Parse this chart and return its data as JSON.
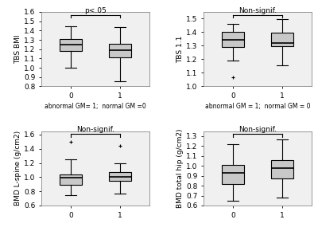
{
  "plots": [
    {
      "ylabel": "TBS BMI",
      "sig_text": "p<.05",
      "ylim": [
        0.8,
        1.6
      ],
      "yticks": [
        0.8,
        0.9,
        1.0,
        1.1,
        1.2,
        1.3,
        1.4,
        1.5,
        1.6
      ],
      "xlabel": "abnormal GM= 1;  normal GM =0",
      "group0": {
        "whislo": 1.0,
        "q1": 1.18,
        "med": 1.25,
        "q3": 1.305,
        "whishi": 1.45,
        "fliers": []
      },
      "group1": {
        "whislo": 0.855,
        "q1": 1.115,
        "med": 1.19,
        "q3": 1.255,
        "whishi": 1.44,
        "fliers": []
      }
    },
    {
      "ylabel": "TBS 1.1",
      "sig_text": "Non-signif.",
      "ylim": [
        1.0,
        1.55
      ],
      "yticks": [
        1.0,
        1.1,
        1.2,
        1.3,
        1.4,
        1.5
      ],
      "xlabel": "abnormal GM = 1;  normal GM = 0",
      "group0": {
        "whislo": 1.19,
        "q1": 1.29,
        "med": 1.345,
        "q3": 1.405,
        "whishi": 1.46,
        "fliers": [
          1.065
        ]
      },
      "group1": {
        "whislo": 1.155,
        "q1": 1.295,
        "med": 1.32,
        "q3": 1.395,
        "whishi": 1.495,
        "fliers": []
      }
    },
    {
      "ylabel": "BMD L-spine (g/cm2)",
      "sig_text": "Non-signif.",
      "ylim": [
        0.6,
        1.65
      ],
      "yticks": [
        0.6,
        0.8,
        1.0,
        1.2,
        1.4,
        1.6
      ],
      "xlabel": "",
      "group0": {
        "whislo": 0.75,
        "q1": 0.89,
        "med": 0.99,
        "q3": 1.04,
        "whishi": 1.25,
        "fliers": [
          1.5
        ]
      },
      "group1": {
        "whislo": 0.77,
        "q1": 0.95,
        "med": 1.01,
        "q3": 1.07,
        "whishi": 1.2,
        "fliers": [
          1.44
        ]
      }
    },
    {
      "ylabel": "BMD total hip (g/cm2)",
      "sig_text": "Non-signif.",
      "ylim": [
        0.6,
        1.35
      ],
      "yticks": [
        0.6,
        0.7,
        0.8,
        0.9,
        1.0,
        1.1,
        1.2,
        1.3
      ],
      "xlabel": "",
      "group0": {
        "whislo": 0.65,
        "q1": 0.82,
        "med": 0.925,
        "q3": 1.01,
        "whishi": 1.22,
        "fliers": []
      },
      "group1": {
        "whislo": 0.68,
        "q1": 0.87,
        "med": 0.975,
        "q3": 1.055,
        "whishi": 1.27,
        "fliers": []
      }
    }
  ],
  "box_color": "#c8c8c8",
  "median_color": "#000000",
  "whisker_color": "#000000",
  "flier_marker": "+",
  "flier_color": "#000000",
  "fontsize_tick": 6.5,
  "fontsize_label": 6.5,
  "fontsize_sig": 6.5,
  "fontsize_xlabel": 5.5,
  "bg_color": "#f0f0f0"
}
